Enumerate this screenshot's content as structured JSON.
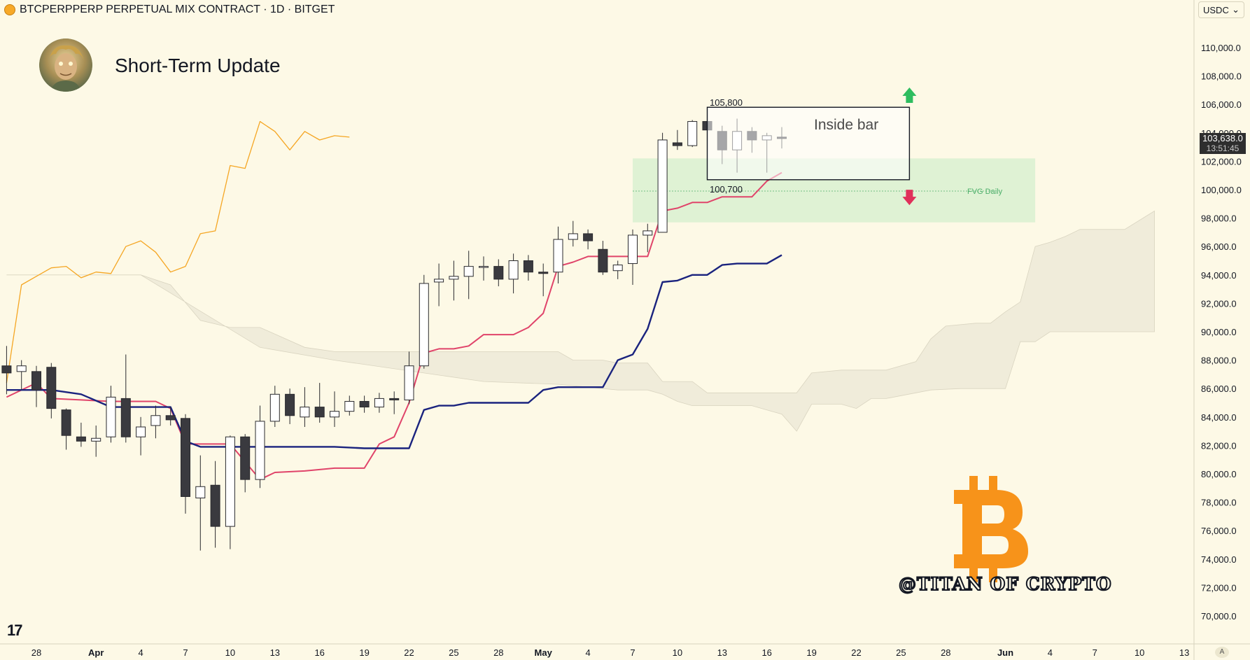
{
  "header": {
    "symbol": "BTCPERPPERP PERPETUAL MIX CONTRACT · 1D · BITGET",
    "currency": "USDC",
    "currency_chevron": "⌄"
  },
  "overlay": {
    "title": "Short-Term Update",
    "watermark": "@TITAN OF CRYPTO",
    "tv_logo": "17",
    "auto_label": "A",
    "inside_bar_label": "Inside bar",
    "level_high_label": "105,800",
    "level_low_label": "100,700",
    "fvg_label": "FVG Daily",
    "bitcoin_logo": "bitcoin-logo"
  },
  "last_price": {
    "value": "103,638.0",
    "countdown": "13:51:45"
  },
  "colors": {
    "background": "#fdf9e6",
    "bull_body": "#ffffff",
    "bear_body": "#3a3a3f",
    "conversion": "#e0446a",
    "base": "#1a237e",
    "lagging": "#f5a623",
    "cloud": "#ebe7d6",
    "fvg": "#d4efcd",
    "arrow_up": "#2ebd5f",
    "arrow_down": "#e0305a",
    "bitcoin": "#f7931a"
  },
  "chart_data": {
    "type": "candlestick",
    "y_axis": {
      "range": [
        69000,
        112500
      ],
      "ticks": [
        "70,000.0",
        "72,000.0",
        "74,000.0",
        "76,000.0",
        "78,000.0",
        "80,000.0",
        "82,000.0",
        "84,000.0",
        "86,000.0",
        "88,000.0",
        "90,000.0",
        "92,000.0",
        "94,000.0",
        "96,000.0",
        "98,000.0",
        "100,000.0",
        "102,000.0",
        "104,000.0",
        "106,000.0",
        "108,000.0",
        "110,000.0"
      ]
    },
    "x_axis": {
      "start_date": "2025-03-28",
      "ticks": [
        {
          "d": 0,
          "label": "28"
        },
        {
          "d": 4,
          "label": "Apr"
        },
        {
          "d": 7,
          "label": "4"
        },
        {
          "d": 10,
          "label": "7"
        },
        {
          "d": 13,
          "label": "10"
        },
        {
          "d": 16,
          "label": "13"
        },
        {
          "d": 19,
          "label": "16"
        },
        {
          "d": 22,
          "label": "19"
        },
        {
          "d": 25,
          "label": "22"
        },
        {
          "d": 28,
          "label": "25"
        },
        {
          "d": 31,
          "label": "28"
        },
        {
          "d": 34,
          "label": "May"
        },
        {
          "d": 37,
          "label": "4"
        },
        {
          "d": 40,
          "label": "7"
        },
        {
          "d": 43,
          "label": "10"
        },
        {
          "d": 46,
          "label": "13"
        },
        {
          "d": 49,
          "label": "16"
        },
        {
          "d": 52,
          "label": "19"
        },
        {
          "d": 55,
          "label": "22"
        },
        {
          "d": 58,
          "label": "25"
        },
        {
          "d": 61,
          "label": "28"
        },
        {
          "d": 65,
          "label": "Jun"
        },
        {
          "d": 68,
          "label": "4"
        },
        {
          "d": 71,
          "label": "7"
        },
        {
          "d": 74,
          "label": "10"
        },
        {
          "d": 77,
          "label": "13"
        }
      ]
    },
    "candles": [
      {
        "d": -2,
        "o": 87600,
        "h": 89000,
        "l": 85600,
        "c": 87100
      },
      {
        "d": -1,
        "o": 87200,
        "h": 88000,
        "l": 85900,
        "c": 87600
      },
      {
        "d": 0,
        "o": 87200,
        "h": 87600,
        "l": 84700,
        "c": 85900
      },
      {
        "d": 1,
        "o": 87500,
        "h": 87800,
        "l": 83900,
        "c": 84600
      },
      {
        "d": 2,
        "o": 84500,
        "h": 84600,
        "l": 81700,
        "c": 82700
      },
      {
        "d": 3,
        "o": 82600,
        "h": 83600,
        "l": 81900,
        "c": 82300
      },
      {
        "d": 4,
        "o": 82300,
        "h": 83400,
        "l": 81200,
        "c": 82500
      },
      {
        "d": 5,
        "o": 82600,
        "h": 86200,
        "l": 82200,
        "c": 85400
      },
      {
        "d": 6,
        "o": 85300,
        "h": 88400,
        "l": 82200,
        "c": 82600
      },
      {
        "d": 7,
        "o": 82600,
        "h": 84000,
        "l": 81300,
        "c": 83300
      },
      {
        "d": 8,
        "o": 83400,
        "h": 84800,
        "l": 82500,
        "c": 84100
      },
      {
        "d": 9,
        "o": 84100,
        "h": 84700,
        "l": 83400,
        "c": 83800
      },
      {
        "d": 10,
        "o": 83900,
        "h": 84200,
        "l": 77200,
        "c": 78400
      },
      {
        "d": 11,
        "o": 78300,
        "h": 81300,
        "l": 74600,
        "c": 79100
      },
      {
        "d": 12,
        "o": 79200,
        "h": 80900,
        "l": 74800,
        "c": 76300
      },
      {
        "d": 13,
        "o": 76300,
        "h": 82700,
        "l": 74700,
        "c": 82600
      },
      {
        "d": 14,
        "o": 82600,
        "h": 82800,
        "l": 78700,
        "c": 79600
      },
      {
        "d": 15,
        "o": 79600,
        "h": 84800,
        "l": 79000,
        "c": 83700
      },
      {
        "d": 16,
        "o": 83700,
        "h": 86200,
        "l": 83300,
        "c": 85600
      },
      {
        "d": 17,
        "o": 85600,
        "h": 86000,
        "l": 83500,
        "c": 84100
      },
      {
        "d": 18,
        "o": 84000,
        "h": 86100,
        "l": 83300,
        "c": 84700
      },
      {
        "d": 19,
        "o": 84700,
        "h": 86400,
        "l": 83600,
        "c": 84000
      },
      {
        "d": 20,
        "o": 84000,
        "h": 85800,
        "l": 83300,
        "c": 84400
      },
      {
        "d": 21,
        "o": 84400,
        "h": 85500,
        "l": 84100,
        "c": 85100
      },
      {
        "d": 22,
        "o": 85100,
        "h": 85500,
        "l": 84300,
        "c": 84700
      },
      {
        "d": 23,
        "o": 84700,
        "h": 85700,
        "l": 84300,
        "c": 85300
      },
      {
        "d": 24,
        "o": 85300,
        "h": 85800,
        "l": 84200,
        "c": 85200
      },
      {
        "d": 25,
        "o": 85200,
        "h": 88600,
        "l": 84900,
        "c": 87600
      },
      {
        "d": 26,
        "o": 87600,
        "h": 94000,
        "l": 87400,
        "c": 93400
      },
      {
        "d": 27,
        "o": 93500,
        "h": 94800,
        "l": 91800,
        "c": 93700
      },
      {
        "d": 28,
        "o": 93700,
        "h": 95000,
        "l": 92200,
        "c": 93900
      },
      {
        "d": 29,
        "o": 93900,
        "h": 95700,
        "l": 92300,
        "c": 94600
      },
      {
        "d": 30,
        "o": 94600,
        "h": 95300,
        "l": 93600,
        "c": 94600
      },
      {
        "d": 31,
        "o": 94600,
        "h": 95100,
        "l": 93200,
        "c": 93700
      },
      {
        "d": 32,
        "o": 93700,
        "h": 95500,
        "l": 92700,
        "c": 95000
      },
      {
        "d": 33,
        "o": 95000,
        "h": 95400,
        "l": 93600,
        "c": 94200
      },
      {
        "d": 34,
        "o": 94200,
        "h": 94800,
        "l": 92500,
        "c": 94100
      },
      {
        "d": 35,
        "o": 94200,
        "h": 97400,
        "l": 93400,
        "c": 96500
      },
      {
        "d": 36,
        "o": 96500,
        "h": 97800,
        "l": 96000,
        "c": 96900
      },
      {
        "d": 37,
        "o": 96900,
        "h": 97200,
        "l": 95800,
        "c": 96400
      },
      {
        "d": 38,
        "o": 95800,
        "h": 96400,
        "l": 94000,
        "c": 94200
      },
      {
        "d": 39,
        "o": 94300,
        "h": 95000,
        "l": 93700,
        "c": 94700
      },
      {
        "d": 40,
        "o": 94800,
        "h": 97200,
        "l": 93300,
        "c": 96800
      },
      {
        "d": 41,
        "o": 96800,
        "h": 97600,
        "l": 95600,
        "c": 97100
      },
      {
        "d": 42,
        "o": 97000,
        "h": 104000,
        "l": 97000,
        "c": 103500
      },
      {
        "d": 43,
        "o": 103300,
        "h": 104200,
        "l": 102800,
        "c": 103100
      },
      {
        "d": 44,
        "o": 103100,
        "h": 104900,
        "l": 103000,
        "c": 104800
      },
      {
        "d": 45,
        "o": 104800,
        "h": 104900,
        "l": 104100,
        "c": 104200
      },
      {
        "d": 46,
        "o": 104100,
        "h": 104500,
        "l": 101800,
        "c": 102800
      },
      {
        "d": 47,
        "o": 102800,
        "h": 105000,
        "l": 101200,
        "c": 104100
      },
      {
        "d": 48,
        "o": 104100,
        "h": 104400,
        "l": 102600,
        "c": 103500
      },
      {
        "d": 49,
        "o": 103500,
        "h": 104000,
        "l": 101200,
        "c": 103800
      },
      {
        "d": 50,
        "o": 103700,
        "h": 104400,
        "l": 102900,
        "c": 103600
      }
    ],
    "conversion_line": [
      [
        -2,
        85400
      ],
      [
        0,
        86400
      ],
      [
        1,
        85300
      ],
      [
        3,
        85200
      ],
      [
        5,
        85100
      ],
      [
        8,
        85100
      ],
      [
        9,
        84600
      ],
      [
        10,
        82100
      ],
      [
        13,
        82100
      ],
      [
        15,
        79600
      ],
      [
        16,
        80100
      ],
      [
        18,
        80200
      ],
      [
        20,
        80400
      ],
      [
        22,
        80400
      ],
      [
        23,
        82100
      ],
      [
        24,
        82600
      ],
      [
        25,
        85000
      ],
      [
        26,
        88500
      ],
      [
        27,
        88800
      ],
      [
        28,
        88800
      ],
      [
        29,
        89000
      ],
      [
        30,
        89800
      ],
      [
        31,
        89800
      ],
      [
        32,
        89800
      ],
      [
        33,
        90300
      ],
      [
        34,
        91300
      ],
      [
        35,
        94600
      ],
      [
        36,
        94900
      ],
      [
        37,
        95300
      ],
      [
        39,
        95300
      ],
      [
        40,
        95300
      ],
      [
        41,
        95300
      ],
      [
        42,
        98500
      ],
      [
        43,
        98700
      ],
      [
        44,
        99100
      ],
      [
        45,
        99100
      ],
      [
        46,
        99500
      ],
      [
        47,
        99500
      ],
      [
        48,
        99500
      ],
      [
        49,
        100600
      ],
      [
        50,
        101200
      ]
    ],
    "base_line": [
      [
        -2,
        85900
      ],
      [
        0,
        85900
      ],
      [
        1,
        85900
      ],
      [
        3,
        85600
      ],
      [
        5,
        84700
      ],
      [
        7,
        84700
      ],
      [
        9,
        84700
      ],
      [
        10,
        82300
      ],
      [
        11,
        81900
      ],
      [
        12,
        81900
      ],
      [
        20,
        81900
      ],
      [
        22,
        81800
      ],
      [
        24,
        81800
      ],
      [
        25,
        81800
      ],
      [
        26,
        84500
      ],
      [
        27,
        84800
      ],
      [
        28,
        84800
      ],
      [
        29,
        85000
      ],
      [
        30,
        85000
      ],
      [
        31,
        85000
      ],
      [
        32,
        85000
      ],
      [
        33,
        85000
      ],
      [
        34,
        85900
      ],
      [
        35,
        86100
      ],
      [
        36,
        86100
      ],
      [
        37,
        86100
      ],
      [
        38,
        86100
      ],
      [
        39,
        88000
      ],
      [
        40,
        88400
      ],
      [
        41,
        90200
      ],
      [
        42,
        93500
      ],
      [
        43,
        93600
      ],
      [
        44,
        94000
      ],
      [
        45,
        94000
      ],
      [
        46,
        94700
      ],
      [
        47,
        94800
      ],
      [
        48,
        94800
      ],
      [
        49,
        94800
      ],
      [
        50,
        95400
      ]
    ],
    "lagging_span": [
      [
        -2,
        86400
      ],
      [
        -1,
        93300
      ],
      [
        0,
        93900
      ],
      [
        1,
        94500
      ],
      [
        2,
        94600
      ],
      [
        3,
        93800
      ],
      [
        4,
        94200
      ],
      [
        5,
        94100
      ],
      [
        6,
        96000
      ],
      [
        7,
        96400
      ],
      [
        8,
        95600
      ],
      [
        9,
        94200
      ],
      [
        10,
        94600
      ],
      [
        11,
        96900
      ],
      [
        12,
        97100
      ],
      [
        13,
        101700
      ],
      [
        14,
        101500
      ],
      [
        15,
        104800
      ],
      [
        16,
        104100
      ],
      [
        17,
        102800
      ],
      [
        18,
        104100
      ],
      [
        19,
        103500
      ],
      [
        20,
        103800
      ],
      [
        21,
        103700
      ]
    ],
    "cloud": {
      "upper": [
        [
          -2,
          94000
        ],
        [
          0,
          94000
        ],
        [
          3,
          94000
        ],
        [
          7,
          94000
        ],
        [
          9,
          93300
        ],
        [
          11,
          90800
        ],
        [
          13,
          90300
        ],
        [
          15,
          90300
        ],
        [
          18,
          88900
        ],
        [
          20,
          88600
        ],
        [
          25,
          88600
        ],
        [
          30,
          88600
        ],
        [
          34,
          88600
        ],
        [
          35,
          88600
        ],
        [
          36,
          88000
        ],
        [
          38,
          88000
        ],
        [
          39,
          87800
        ],
        [
          41,
          87800
        ],
        [
          42,
          86500
        ],
        [
          44,
          86500
        ],
        [
          45,
          85700
        ],
        [
          48,
          85700
        ],
        [
          51,
          85700
        ],
        [
          52,
          87100
        ],
        [
          54,
          87300
        ],
        [
          57,
          87300
        ],
        [
          59,
          87900
        ],
        [
          60,
          89500
        ],
        [
          61,
          90400
        ],
        [
          63,
          90600
        ],
        [
          64,
          90600
        ],
        [
          65,
          91400
        ],
        [
          66,
          92100
        ],
        [
          67,
          96000
        ],
        [
          68,
          96300
        ],
        [
          69,
          96700
        ],
        [
          70,
          97200
        ],
        [
          73,
          97200
        ],
        [
          75,
          98500
        ]
      ],
      "lower": [
        [
          -2,
          94000
        ],
        [
          7,
          94000
        ],
        [
          15,
          88900
        ],
        [
          20,
          88000
        ],
        [
          30,
          86500
        ],
        [
          35,
          86300
        ],
        [
          39,
          85900
        ],
        [
          41,
          85900
        ],
        [
          42,
          85600
        ],
        [
          43,
          85100
        ],
        [
          44,
          84800
        ],
        [
          45,
          84800
        ],
        [
          48,
          84800
        ],
        [
          49,
          84500
        ],
        [
          50,
          84200
        ],
        [
          51,
          83000
        ],
        [
          52,
          84900
        ],
        [
          54,
          84900
        ],
        [
          55,
          84600
        ],
        [
          56,
          85300
        ],
        [
          57,
          85300
        ],
        [
          60,
          85900
        ],
        [
          62,
          86000
        ],
        [
          65,
          86000
        ],
        [
          66,
          89300
        ],
        [
          67,
          89300
        ],
        [
          68,
          90000
        ],
        [
          73,
          90000
        ],
        [
          75,
          90000
        ]
      ]
    },
    "annotations": {
      "inside_bar_box": {
        "d_start": 45,
        "d_end": 58,
        "high": 105800,
        "low": 100700
      },
      "fvg_zone": {
        "d_start": 40,
        "d_end": 67,
        "top": 102200,
        "bottom": 97700,
        "mid": 99900
      },
      "arrow_up": {
        "d": 58,
        "price": 106600
      },
      "arrow_down": {
        "d": 58,
        "price": 99500
      }
    }
  }
}
